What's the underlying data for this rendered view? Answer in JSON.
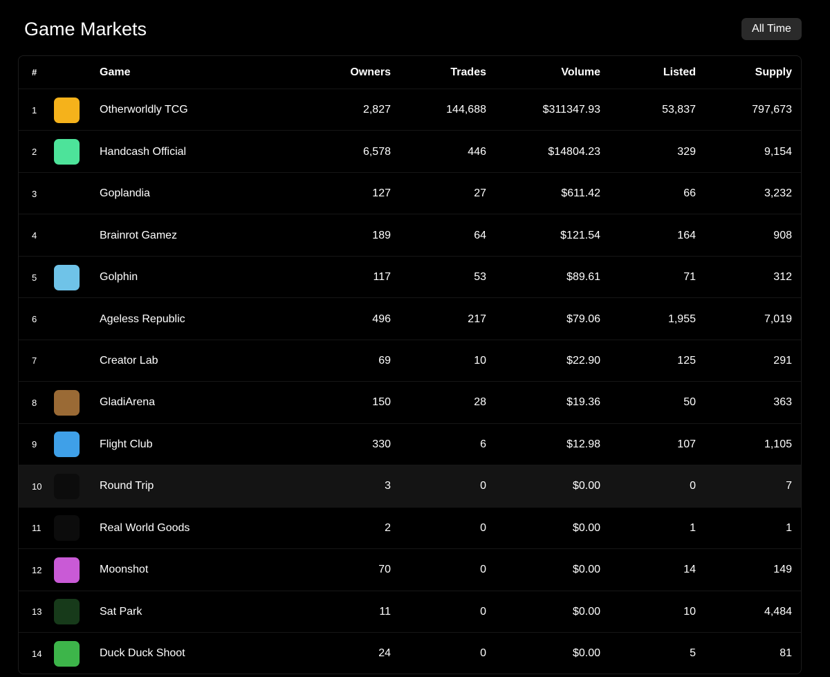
{
  "header": {
    "title": "Game Markets",
    "button": "All Time"
  },
  "table": {
    "columns": [
      "#",
      "Game",
      "Owners",
      "Trades",
      "Volume",
      "Listed",
      "Supply"
    ],
    "rows": [
      [
        "1",
        "Otherworldly TCG",
        "2,827",
        "144,688",
        "$311347.93",
        "53,837",
        "797,673"
      ],
      [
        "2",
        "Handcash Official",
        "6,578",
        "446",
        "$14804.23",
        "329",
        "9,154"
      ],
      [
        "3",
        "Goplandia",
        "127",
        "27",
        "$611.42",
        "66",
        "3,232"
      ],
      [
        "4",
        "Brainrot Gamez",
        "189",
        "64",
        "$121.54",
        "164",
        "908"
      ],
      [
        "5",
        "Golphin",
        "117",
        "53",
        "$89.61",
        "71",
        "312"
      ],
      [
        "6",
        "Ageless Republic",
        "496",
        "217",
        "$79.06",
        "1,955",
        "7,019"
      ],
      [
        "7",
        "Creator Lab",
        "69",
        "10",
        "$22.90",
        "125",
        "291"
      ],
      [
        "8",
        "GladiArena",
        "150",
        "28",
        "$19.36",
        "50",
        "363"
      ],
      [
        "9",
        "Flight Club",
        "330",
        "6",
        "$12.98",
        "107",
        "1,105"
      ],
      [
        "10",
        "Round Trip",
        "3",
        "0",
        "$0.00",
        "0",
        "7"
      ],
      [
        "11",
        "Real World Goods",
        "2",
        "0",
        "$0.00",
        "1",
        "1"
      ],
      [
        "12",
        "Moonshot",
        "70",
        "0",
        "$0.00",
        "14",
        "149"
      ],
      [
        "13",
        "Sat Park",
        "11",
        "0",
        "$0.00",
        "10",
        "4,484"
      ],
      [
        "14",
        "Duck Duck Shoot",
        "24",
        "0",
        "$0.00",
        "5",
        "81"
      ]
    ]
  }
}
